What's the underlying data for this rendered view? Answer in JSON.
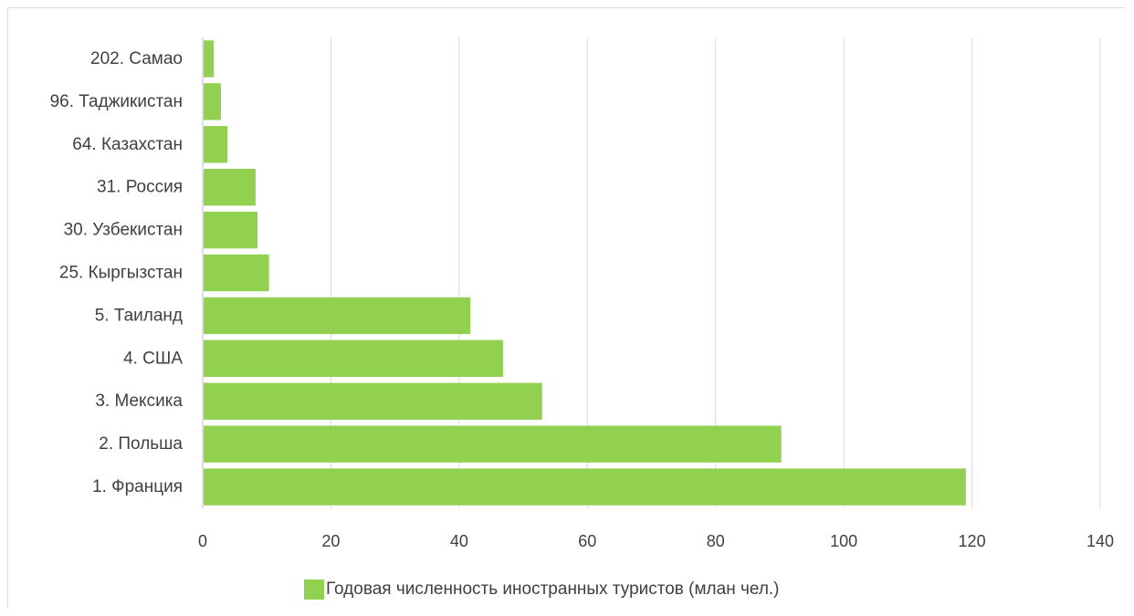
{
  "chart_data": {
    "type": "bar",
    "orientation": "horizontal",
    "title": "",
    "xlabel": "",
    "ylabel": "",
    "categories": [
      "1. Франция",
      "2. Польша",
      "3. Мексика",
      "4. США",
      "5. Таиланд",
      "25. Кыргызстан",
      "30. Узбекистан",
      "31. Россия",
      "64. Казахстан",
      "96. Таджикистан",
      "202. Самао"
    ],
    "series": [
      {
        "name": "Годовая численность иностранных туристов (млан чел.)",
        "color": "#92d050",
        "values": [
          118.9,
          90.1,
          52.8,
          46.7,
          41.6,
          10.2,
          8.4,
          8.1,
          3.7,
          2.7,
          1.6
        ]
      }
    ],
    "xlim": [
      0,
      140
    ],
    "xticks": [
      "0",
      "20",
      "40",
      "60",
      "80",
      "100",
      "120",
      "140"
    ],
    "grid": "vertical",
    "legend_position": "bottom"
  }
}
